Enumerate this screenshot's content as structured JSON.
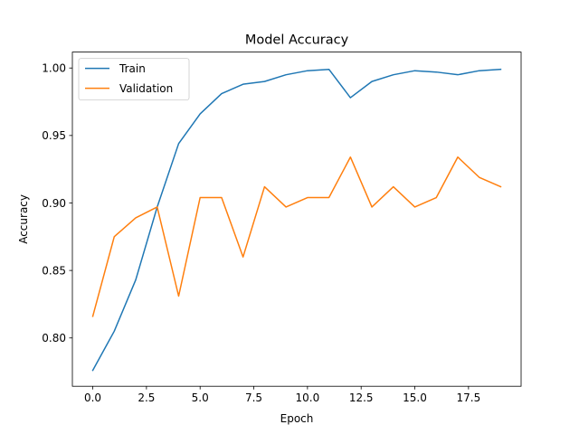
{
  "chart_data": {
    "type": "line",
    "title": "Model Accuracy",
    "xlabel": "Epoch",
    "ylabel": "Accuracy",
    "xlim": [
      -0.95,
      19.95
    ],
    "ylim": [
      0.7642,
      1.0118
    ],
    "x_ticks": [
      0.0,
      2.5,
      5.0,
      7.5,
      10.0,
      12.5,
      15.0,
      17.5
    ],
    "x_tick_labels": [
      "0.0",
      "2.5",
      "5.0",
      "7.5",
      "10.0",
      "12.5",
      "15.0",
      "17.5"
    ],
    "y_ticks": [
      0.8,
      0.85,
      0.9,
      0.95,
      1.0
    ],
    "y_tick_labels": [
      "0.80",
      "0.85",
      "0.90",
      "0.95",
      "1.00"
    ],
    "grid": false,
    "legend_position": "top-left",
    "x": [
      0,
      1,
      2,
      3,
      4,
      5,
      6,
      7,
      8,
      9,
      10,
      11,
      12,
      13,
      14,
      15,
      16,
      17,
      18,
      19
    ],
    "series": [
      {
        "name": "Train",
        "color": "#1f77b4",
        "values": [
          0.776,
          0.805,
          0.843,
          0.897,
          0.944,
          0.966,
          0.981,
          0.988,
          0.99,
          0.995,
          0.998,
          0.999,
          0.978,
          0.99,
          0.995,
          0.998,
          0.997,
          0.995,
          0.998,
          0.999
        ]
      },
      {
        "name": "Validation",
        "color": "#ff7f0e",
        "values": [
          0.816,
          0.875,
          0.889,
          0.897,
          0.831,
          0.904,
          0.904,
          0.86,
          0.912,
          0.897,
          0.904,
          0.904,
          0.934,
          0.897,
          0.912,
          0.897,
          0.904,
          0.934,
          0.919,
          0.912
        ]
      }
    ]
  }
}
